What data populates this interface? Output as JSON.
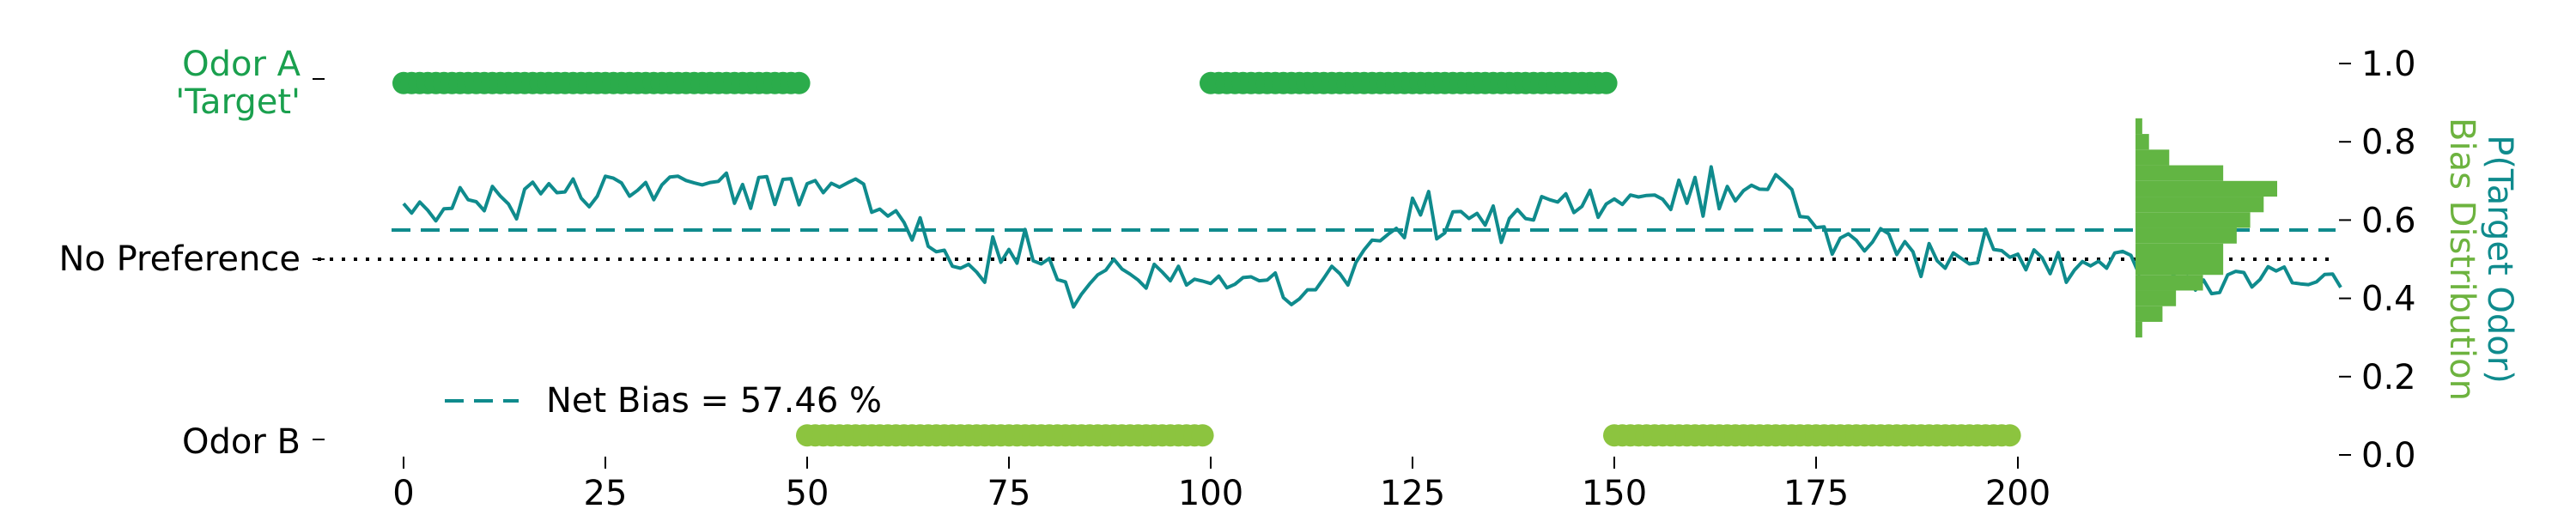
{
  "chart_data": {
    "type": "line",
    "x_ticks": [
      0,
      25,
      50,
      75,
      100,
      125,
      150,
      175,
      200
    ],
    "xlim": [
      0,
      199
    ],
    "right_axis": {
      "ticks": [
        "0.0",
        "0.2",
        "0.4",
        "0.6",
        "0.8",
        "1.0"
      ],
      "ylim": [
        0,
        1
      ],
      "title": "P(Target Odor)",
      "title_color": "#0f8b8d",
      "subtitle": "Bias Distribution",
      "subtitle_color": "#6db33f"
    },
    "left_labels": {
      "odor_a_line1": "Odor A",
      "odor_a_line2": "'Target'",
      "odor_a_color": "#1aa04e",
      "no_preference": "No Preference",
      "odor_b": "Odor B"
    },
    "net_bias": {
      "value": 0.5746,
      "legend_label": "Net Bias = 57.46 %",
      "color": "#0f8b8d"
    },
    "no_preference_level": 0.5,
    "odor_a_blocks": [
      [
        0,
        49
      ],
      [
        100,
        149
      ]
    ],
    "odor_b_blocks": [
      [
        50,
        99
      ],
      [
        150,
        199
      ]
    ],
    "odor_a_marker_y": 0.95,
    "odor_b_marker_y": 0.05,
    "colors": {
      "odor_a": "#2bac4b",
      "odor_b": "#8cc43f",
      "line": "#0f8b8d",
      "hist": "#62b543"
    },
    "series": [
      {
        "values": [
          0.642,
          0.618,
          0.646,
          0.625,
          0.598,
          0.629,
          0.63,
          0.683,
          0.652,
          0.647,
          0.624,
          0.686,
          0.661,
          0.641,
          0.603,
          0.679,
          0.697,
          0.667,
          0.693,
          0.67,
          0.672,
          0.705,
          0.656,
          0.634,
          0.661,
          0.712,
          0.707,
          0.695,
          0.661,
          0.676,
          0.696,
          0.652,
          0.69,
          0.71,
          0.712,
          0.701,
          0.695,
          0.69,
          0.696,
          0.699,
          0.72,
          0.643,
          0.691,
          0.63,
          0.709,
          0.711,
          0.64,
          0.704,
          0.706,
          0.639,
          0.693,
          0.701,
          0.67,
          0.694,
          0.684,
          0.695,
          0.705,
          0.692,
          0.62,
          0.628,
          0.61,
          0.624,
          0.594,
          0.549,
          0.606,
          0.533,
          0.519,
          0.523,
          0.482,
          0.477,
          0.487,
          0.467,
          0.441,
          0.557,
          0.492,
          0.525,
          0.49,
          0.576,
          0.496,
          0.488,
          0.502,
          0.448,
          0.442,
          0.378,
          0.411,
          0.437,
          0.46,
          0.472,
          0.5,
          0.475,
          0.462,
          0.447,
          0.426,
          0.487,
          0.467,
          0.445,
          0.482,
          0.434,
          0.449,
          0.444,
          0.438,
          0.457,
          0.427,
          0.436,
          0.453,
          0.455,
          0.445,
          0.447,
          0.465,
          0.402,
          0.384,
          0.399,
          0.422,
          0.422,
          0.451,
          0.482,
          0.463,
          0.434,
          0.492,
          0.524,
          0.549,
          0.547,
          0.564,
          0.579,
          0.555,
          0.656,
          0.613,
          0.673,
          0.552,
          0.567,
          0.621,
          0.622,
          0.604,
          0.617,
          0.587,
          0.636,
          0.543,
          0.604,
          0.627,
          0.604,
          0.6,
          0.66,
          0.652,
          0.646,
          0.667,
          0.619,
          0.635,
          0.676,
          0.607,
          0.641,
          0.654,
          0.64,
          0.664,
          0.659,
          0.663,
          0.664,
          0.653,
          0.627,
          0.702,
          0.643,
          0.709,
          0.61,
          0.736,
          0.629,
          0.686,
          0.649,
          0.675,
          0.689,
          0.679,
          0.678,
          0.716,
          0.698,
          0.678,
          0.609,
          0.607,
          0.581,
          0.583,
          0.513,
          0.554,
          0.565,
          0.548,
          0.521,
          0.544,
          0.578,
          0.565,
          0.512,
          0.545,
          0.519,
          0.456,
          0.54,
          0.496,
          0.477,
          0.516,
          0.502,
          0.488,
          0.491,
          0.577,
          0.525,
          0.522,
          0.505,
          0.513,
          0.473,
          0.524,
          0.504,
          0.463,
          0.517,
          0.441,
          0.472,
          0.494,
          0.483,
          0.495,
          0.477,
          0.516,
          0.52,
          0.51,
          0.463,
          0.531,
          0.495,
          0.48,
          0.467,
          0.441,
          0.456,
          0.421,
          0.447,
          0.412,
          0.415,
          0.46,
          0.469,
          0.466,
          0.429,
          0.448,
          0.481,
          0.47,
          0.48,
          0.44,
          0.437,
          0.435,
          0.442,
          0.461,
          0.462,
          0.428
        ]
      }
    ],
    "histogram": [
      {
        "lo": 0.3,
        "hi": 0.34,
        "count": 1
      },
      {
        "lo": 0.34,
        "hi": 0.38,
        "count": 4
      },
      {
        "lo": 0.38,
        "hi": 0.42,
        "count": 6
      },
      {
        "lo": 0.42,
        "hi": 0.46,
        "count": 10
      },
      {
        "lo": 0.46,
        "hi": 0.5,
        "count": 13
      },
      {
        "lo": 0.5,
        "hi": 0.54,
        "count": 13
      },
      {
        "lo": 0.54,
        "hi": 0.58,
        "count": 15
      },
      {
        "lo": 0.58,
        "hi": 0.62,
        "count": 17
      },
      {
        "lo": 0.62,
        "hi": 0.66,
        "count": 19
      },
      {
        "lo": 0.66,
        "hi": 0.7,
        "count": 21
      },
      {
        "lo": 0.7,
        "hi": 0.74,
        "count": 13
      },
      {
        "lo": 0.74,
        "hi": 0.78,
        "count": 5
      },
      {
        "lo": 0.78,
        "hi": 0.82,
        "count": 2
      },
      {
        "lo": 0.82,
        "hi": 0.86,
        "count": 1
      }
    ]
  }
}
